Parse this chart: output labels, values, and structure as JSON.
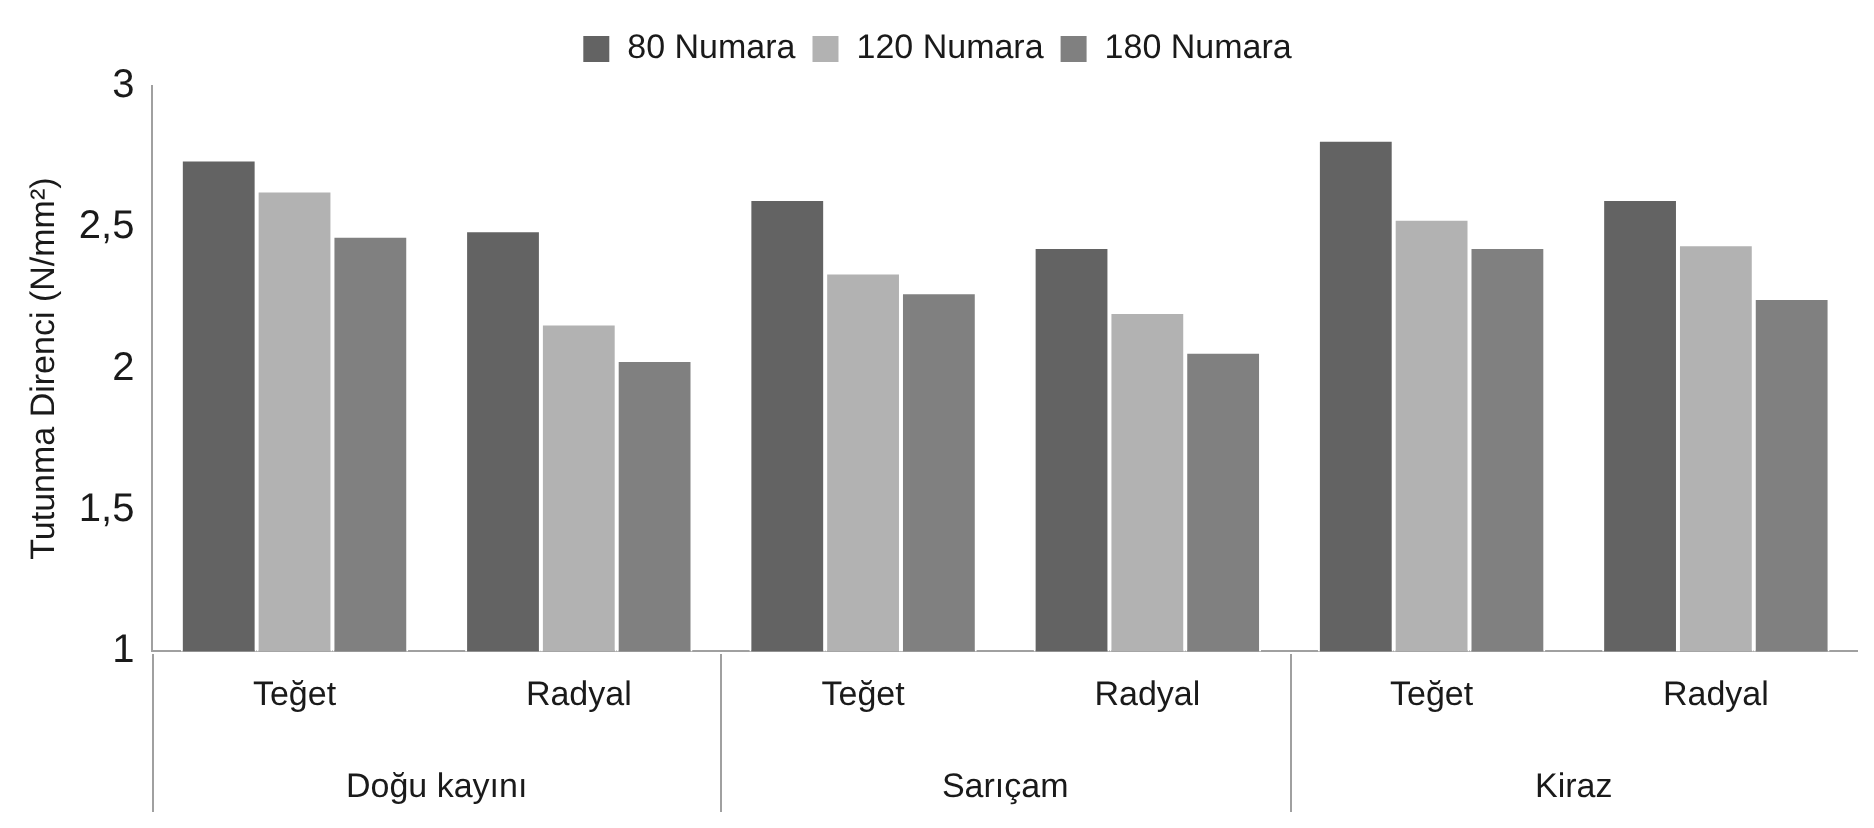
{
  "chart_data": {
    "type": "bar",
    "ylabel": "Tutunma Direnci (N/mm²)",
    "categories": [
      "Teğet",
      "Radyal",
      "Teğet",
      "Radyal",
      "Teğet",
      "Radyal"
    ],
    "annotations": [
      "Doğu kayını",
      "Sarıçam",
      "Kiraz"
    ],
    "series": [
      {
        "name": "80 Numara",
        "color": "#636363",
        "values": [
          2.74,
          2.49,
          2.6,
          2.43,
          2.81,
          2.6
        ]
      },
      {
        "name": "120 Numara",
        "color": "#b2b2b2",
        "values": [
          2.63,
          2.16,
          2.34,
          2.2,
          2.53,
          2.44
        ]
      },
      {
        "name": "180 Numara",
        "color": "#808080",
        "values": [
          2.47,
          2.03,
          2.27,
          2.06,
          2.43,
          2.25
        ]
      }
    ],
    "ylim": [
      1,
      3
    ],
    "yticks": [
      1,
      {
        "value": 1.5,
        "label": "1,5"
      },
      2,
      {
        "value": 2.5,
        "label": "2,5"
      },
      3
    ],
    "grid": false,
    "legend": "top"
  }
}
